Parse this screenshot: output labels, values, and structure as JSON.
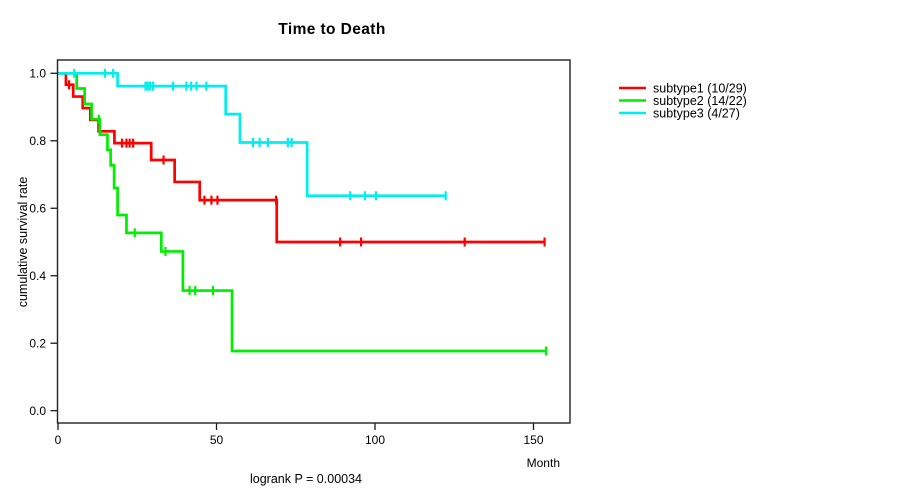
{
  "chart_data": {
    "type": "line",
    "variant": "kaplan-meier-step",
    "title": "Time to Death",
    "xlabel": "Month",
    "ylabel": "cumulative survival rate",
    "annotation": "logrank P = 0.00034",
    "xlim": [
      0,
      162
    ],
    "ylim": [
      0,
      1.04
    ],
    "x_ticks": [
      0,
      50,
      100,
      150
    ],
    "x_tick_labels": [
      "0",
      "50",
      "100",
      "150"
    ],
    "y_ticks": [
      0.0,
      0.2,
      0.4,
      0.6,
      0.8,
      1.0
    ],
    "y_tick_labels": [
      "0.0",
      "0.2",
      "0.4",
      "0.6",
      "0.8",
      "1.0"
    ],
    "grid": false,
    "legend_position": "right",
    "colors": {
      "axis": "#1a1a1a",
      "text": "#000000",
      "background": "#ffffff"
    },
    "series": [
      {
        "name": "subtype1",
        "legend_label": "subtype1 (10/29)",
        "events": 10,
        "n": 29,
        "color": "#ff0000",
        "start_value": 1.0,
        "steps": [
          [
            2.5,
            0.966
          ],
          [
            4.8,
            0.931
          ],
          [
            7.8,
            0.897
          ],
          [
            10.2,
            0.862
          ],
          [
            12.8,
            0.828
          ],
          [
            17.8,
            0.793
          ],
          [
            29.4,
            0.743
          ],
          [
            36.8,
            0.678
          ],
          [
            44.7,
            0.624
          ],
          [
            69.0,
            0.5
          ]
        ],
        "end_month": 153.5,
        "censor_marks": [
          [
            3.5,
            0.966
          ],
          [
            20.2,
            0.793
          ],
          [
            21.6,
            0.793
          ],
          [
            22.6,
            0.793
          ],
          [
            23.7,
            0.793
          ],
          [
            33.3,
            0.743
          ],
          [
            46.2,
            0.624
          ],
          [
            48.4,
            0.624
          ],
          [
            50.3,
            0.624
          ],
          [
            68.8,
            0.624
          ],
          [
            89.0,
            0.5
          ],
          [
            95.6,
            0.5
          ],
          [
            128.3,
            0.5
          ],
          [
            153.5,
            0.5
          ]
        ]
      },
      {
        "name": "subtype2",
        "legend_label": "subtype2 (14/22)",
        "events": 14,
        "n": 22,
        "color": "#00ee00",
        "start_value": 1.0,
        "steps": [
          [
            5.9,
            0.955
          ],
          [
            8.4,
            0.909
          ],
          [
            10.6,
            0.864
          ],
          [
            13.2,
            0.818
          ],
          [
            15.6,
            0.773
          ],
          [
            16.6,
            0.727
          ],
          [
            17.7,
            0.66
          ],
          [
            18.8,
            0.58
          ],
          [
            21.6,
            0.527
          ],
          [
            32.6,
            0.472
          ],
          [
            39.4,
            0.356
          ],
          [
            54.9,
            0.177
          ]
        ],
        "end_month": 154.0,
        "censor_marks": [
          [
            12.9,
            0.864
          ],
          [
            24.2,
            0.527
          ],
          [
            33.9,
            0.472
          ],
          [
            41.5,
            0.356
          ],
          [
            43.3,
            0.356
          ],
          [
            48.9,
            0.356
          ],
          [
            154.0,
            0.177
          ]
        ]
      },
      {
        "name": "subtype3",
        "legend_label": "subtype3 (4/27)",
        "events": 4,
        "n": 27,
        "color": "#00eeee",
        "start_value": 1.0,
        "steps": [
          [
            18.8,
            0.962
          ],
          [
            52.9,
            0.879
          ],
          [
            57.4,
            0.795
          ],
          [
            78.6,
            0.637
          ]
        ],
        "end_month": 122.3,
        "censor_marks": [
          [
            5.1,
            1.0
          ],
          [
            14.8,
            1.0
          ],
          [
            17.4,
            1.0
          ],
          [
            27.6,
            0.962
          ],
          [
            28.3,
            0.962
          ],
          [
            29.0,
            0.962
          ],
          [
            30.0,
            0.962
          ],
          [
            36.3,
            0.962
          ],
          [
            40.5,
            0.962
          ],
          [
            42.0,
            0.962
          ],
          [
            43.7,
            0.962
          ],
          [
            46.8,
            0.962
          ],
          [
            61.5,
            0.795
          ],
          [
            63.6,
            0.795
          ],
          [
            66.2,
            0.795
          ],
          [
            72.5,
            0.795
          ],
          [
            73.7,
            0.795
          ],
          [
            92.2,
            0.637
          ],
          [
            96.8,
            0.637
          ],
          [
            100.3,
            0.637
          ],
          [
            122.3,
            0.637
          ]
        ]
      }
    ]
  }
}
